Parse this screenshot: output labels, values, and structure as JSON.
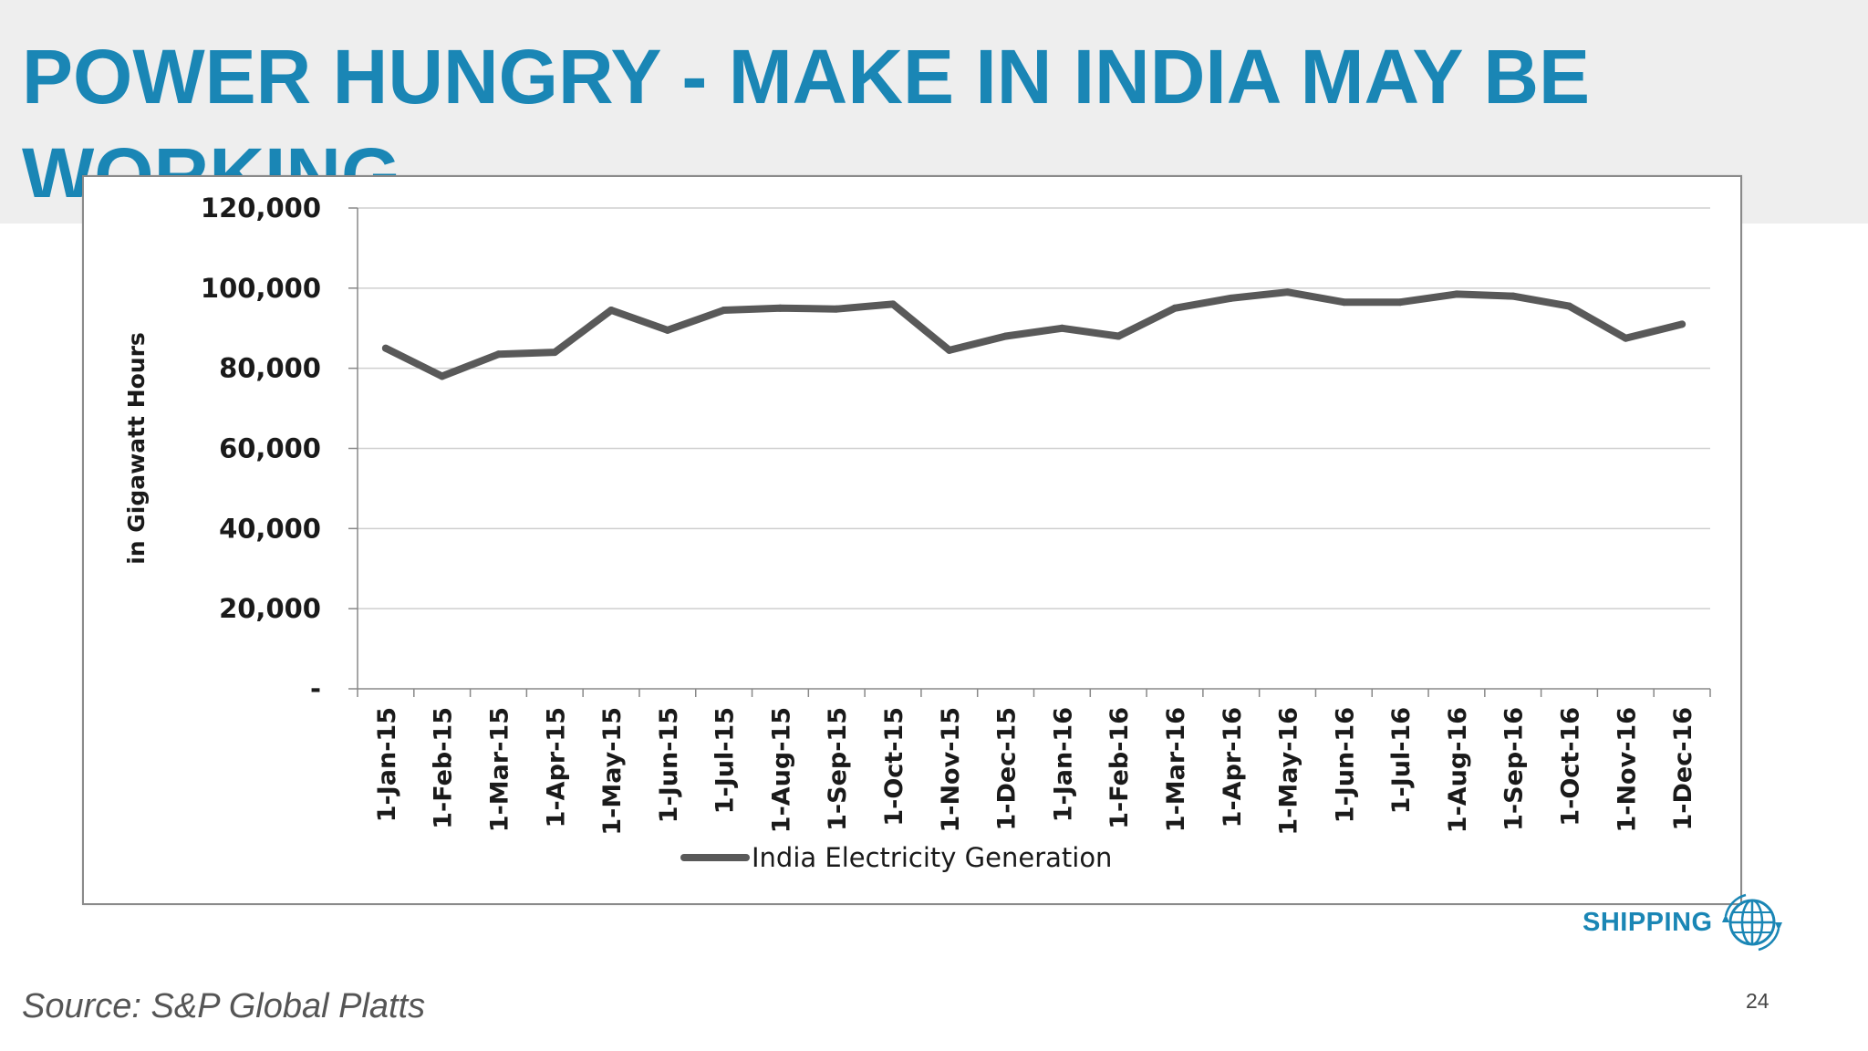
{
  "slide": {
    "title": "POWER HUNGRY - MAKE IN INDIA MAY BE WORKING",
    "source": "Source: S&P Global Platts",
    "page_number": "24",
    "brand": "SHIPPING",
    "brand_icon": "globe-icon",
    "accent_color": "#1a86b5"
  },
  "chart_data": {
    "type": "line",
    "title": "",
    "xlabel": "",
    "ylabel": "in Gigawatt Hours",
    "categories": [
      "1-Jan-15",
      "1-Feb-15",
      "1-Mar-15",
      "1-Apr-15",
      "1-May-15",
      "1-Jun-15",
      "1-Jul-15",
      "1-Aug-15",
      "1-Sep-15",
      "1-Oct-15",
      "1-Nov-15",
      "1-Dec-15",
      "1-Jan-16",
      "1-Feb-16",
      "1-Mar-16",
      "1-Apr-16",
      "1-May-16",
      "1-Jun-16",
      "1-Jul-16",
      "1-Aug-16",
      "1-Sep-16",
      "1-Oct-16",
      "1-Nov-16",
      "1-Dec-16"
    ],
    "series": [
      {
        "name": "India Electricity Generation",
        "color": "#595959",
        "values": [
          85000,
          78000,
          83500,
          84000,
          94500,
          89500,
          94500,
          95000,
          94800,
          96000,
          84500,
          88000,
          90000,
          88000,
          95000,
          97500,
          99000,
          96500,
          96500,
          98500,
          98000,
          95500,
          87500,
          91000
        ]
      }
    ],
    "ylim": [
      0,
      120000
    ],
    "yticks": [
      0,
      20000,
      40000,
      60000,
      80000,
      100000,
      120000
    ],
    "ytick_labels": [
      "-",
      "20,000",
      "40,000",
      "60,000",
      "80,000",
      "100,000",
      "120,000"
    ],
    "grid": true,
    "legend": "bottom"
  }
}
